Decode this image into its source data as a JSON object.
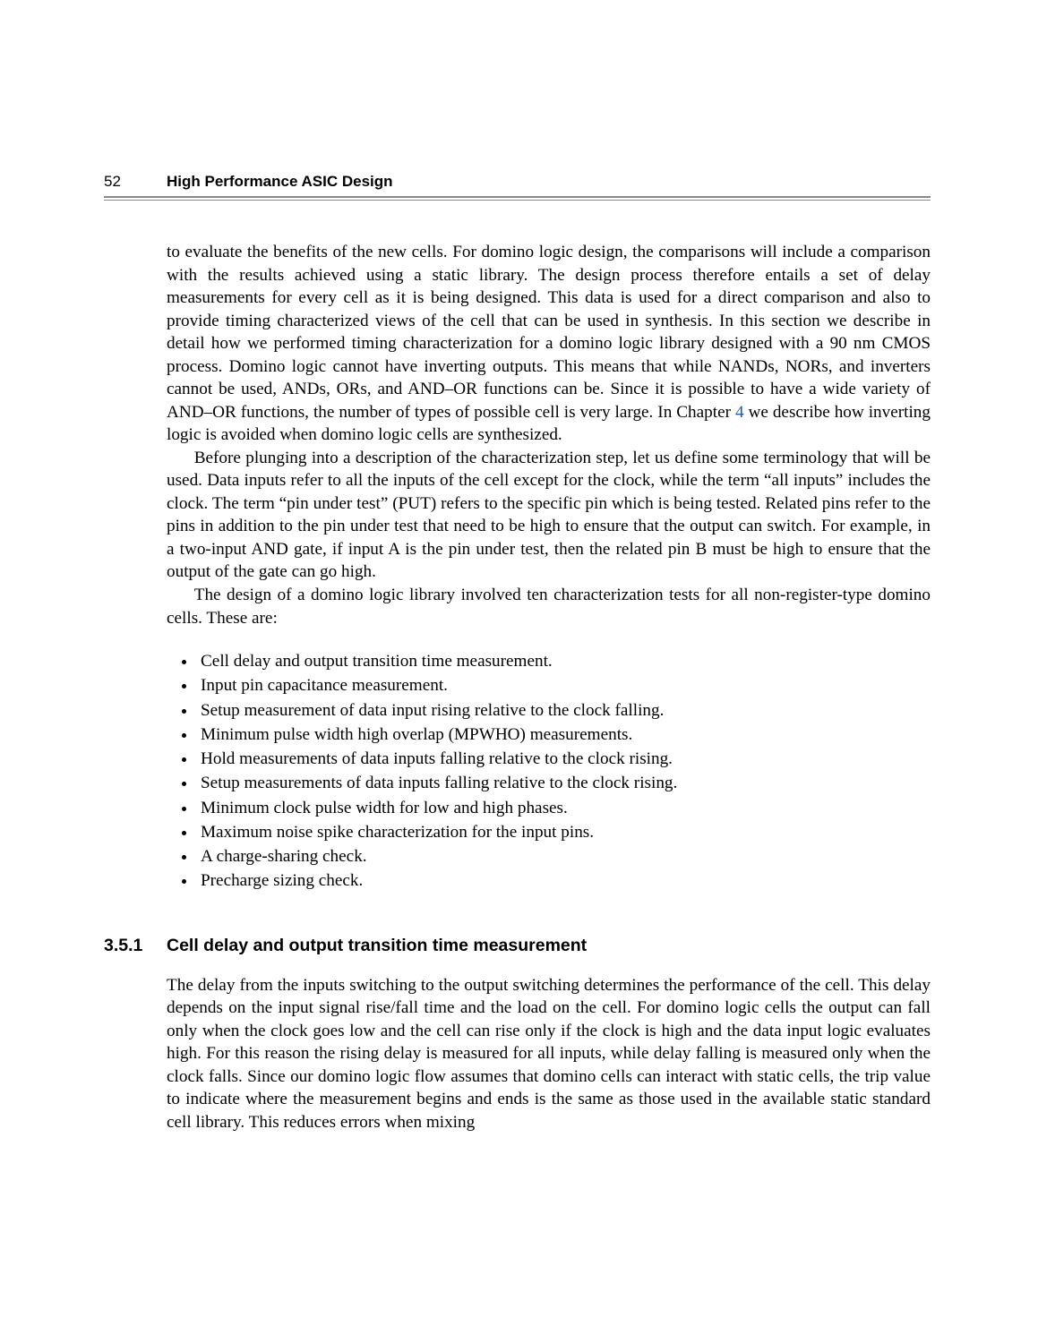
{
  "header": {
    "page_number": "52",
    "book_title": "High Performance ASIC Design"
  },
  "paragraphs": {
    "p1a": "to evaluate the benefits of the new cells. For domino logic design, the comparisons will include a comparison with the results achieved using a static library. The design process therefore entails a set of delay measurements for every cell as it is being designed. This data is used for a direct comparison and also to provide timing characterized views of the cell that can be used in synthesis. In this section we describe in detail how we performed timing characterization for a domino logic library designed with a 90 nm CMOS process. Domino logic cannot have inverting outputs. This means that while NANDs, NORs, and inverters cannot be used, ANDs, ORs, and AND–OR functions can be. Since it is possible to have a wide variety of AND–OR functions, the number of types of possible cell is very large. In Chapter ",
    "chapter_link": "4",
    "p1b": " we describe how inverting logic is avoided when domino logic cells are synthesized.",
    "p2": "Before plunging into a description of the characterization step, let us define some terminology that will be used. Data inputs refer to all the inputs of the cell except for the clock, while the term “all inputs” includes the clock. The term “pin under test” (PUT) refers to the specific pin which is being tested. Related pins refer to the pins in addition to the pin under test that need to be high to ensure that the output can switch. For example, in a two-input AND gate, if input A is the pin under test, then the related pin B must be high to ensure that the output of the gate can go high.",
    "p3": "The design of a domino logic library involved ten characterization tests for all non-register-type domino cells. These are:"
  },
  "tests": [
    "Cell delay and output transition time measurement.",
    "Input pin capacitance measurement.",
    "Setup measurement of data input rising relative to the clock falling.",
    "Minimum pulse width high overlap (MPWHO) measurements.",
    "Hold measurements of data inputs falling relative to the clock rising.",
    "Setup measurements of data inputs falling relative to the clock rising.",
    "Minimum clock pulse width for low and high phases.",
    "Maximum noise spike characterization for the input pins.",
    "A charge-sharing check.",
    "Precharge sizing check."
  ],
  "section": {
    "number": "3.5.1",
    "title": "Cell delay and output transition time measurement",
    "body": "The delay from the inputs switching to the output switching determines the performance of the cell. This delay depends on the input signal rise/fall time and the load on the cell. For domino logic cells the output can fall only when the clock goes low and the cell can rise only if the clock is high and the data input logic evaluates high. For this reason the rising delay is measured for all inputs, while delay falling is measured only when the clock falls. Since our domino logic flow assumes that domino cells can interact with static cells, the trip value to indicate where the measurement begins and ends is the same as those used in the available static standard cell library. This reduces errors when mixing"
  }
}
